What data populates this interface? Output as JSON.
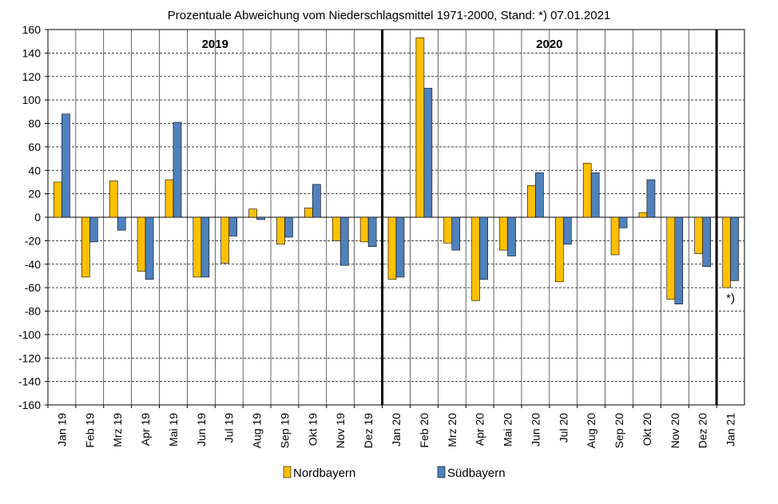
{
  "chart_data": {
    "type": "bar",
    "title": "Prozentuale Abweichung vom Niederschlagsmittel 1971-2000, Stand: *) 07.01.2021",
    "xlabel": "",
    "ylabel": "",
    "ylim": [
      -160,
      160
    ],
    "yticks": [
      160,
      140,
      120,
      100,
      80,
      60,
      40,
      20,
      0,
      -20,
      -40,
      -60,
      -80,
      -100,
      -120,
      -140,
      -160
    ],
    "grid": true,
    "legend_position": "bottom",
    "categories": [
      "Jan 19",
      "Feb 19",
      "Mrz 19",
      "Apr 19",
      "Mai 19",
      "Jun 19",
      "Jul 19",
      "Aug 19",
      "Sep 19",
      "Okt 19",
      "Nov 19",
      "Dez 19",
      "Jan 20",
      "Feb 20",
      "Mrz 20",
      "Apr 20",
      "Mai 20",
      "Jun 20",
      "Jul 20",
      "Aug 20",
      "Sep 20",
      "Okt 20",
      "Nov 20",
      "Dez 20",
      "Jan 21"
    ],
    "series": [
      {
        "name": "Nordbayern",
        "color": "#FFC000",
        "values": [
          30,
          -51,
          31,
          -46,
          32,
          -51,
          -39,
          7,
          -23,
          8,
          -20,
          -21,
          -53,
          153,
          -22,
          -71,
          -28,
          27,
          -55,
          46,
          -32,
          4,
          -70,
          -31,
          -60
        ]
      },
      {
        "name": "Südbayern",
        "color": "#4F81BD",
        "values": [
          88,
          -21,
          -11,
          -53,
          81,
          -51,
          -16,
          -2,
          -17,
          28,
          -41,
          -25,
          -51,
          110,
          -28,
          -53,
          -33,
          38,
          -23,
          38,
          -9,
          32,
          -74,
          -42,
          -54
        ]
      }
    ],
    "year_labels": [
      {
        "text": "2019",
        "category_index": 6
      },
      {
        "text": "2020",
        "category_index": 18
      }
    ],
    "year_dividers_after": [
      11,
      23
    ],
    "annotation": {
      "text": "*)",
      "category_index": 24
    }
  }
}
